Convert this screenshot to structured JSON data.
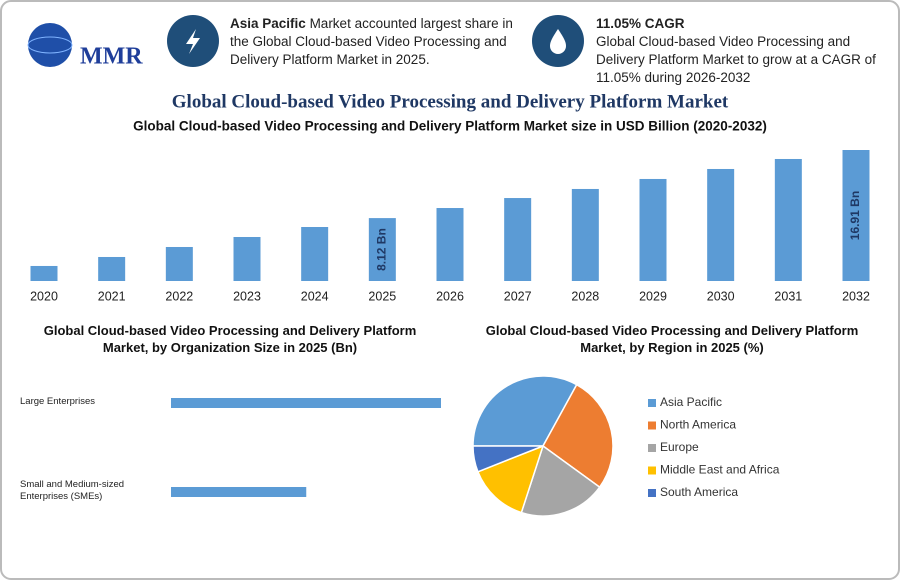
{
  "header": {
    "logo": "MMR",
    "note1": {
      "bold": "Asia Pacific",
      "text": "Market accounted largest share in the Global Cloud-based Video Processing and Delivery Platform Market in 2025."
    },
    "note2": {
      "bold": "11.05% CAGR",
      "text": "Global Cloud-based Video Processing and Delivery Platform Market to grow at a CAGR of 11.05% during 2026-2032"
    }
  },
  "title": "Global Cloud-based Video Processing and Delivery Platform Market",
  "chart_data": [
    {
      "type": "bar",
      "title": "Global Cloud-based Video Processing and Delivery Platform Market size in USD Billion (2020-2032)",
      "categories": [
        "2020",
        "2021",
        "2022",
        "2023",
        "2024",
        "2025",
        "2026",
        "2027",
        "2028",
        "2029",
        "2030",
        "2031",
        "2032"
      ],
      "values": [
        1.94,
        3.1,
        4.39,
        5.68,
        6.97,
        8.12,
        9.42,
        10.71,
        11.88,
        13.17,
        14.46,
        15.75,
        16.91
      ],
      "value_labels": [
        null,
        null,
        null,
        null,
        null,
        "8.12 Bn",
        null,
        null,
        null,
        null,
        null,
        null,
        "16.91 Bn"
      ],
      "color": "#5b9bd5"
    },
    {
      "type": "hbar",
      "title": "Global Cloud-based Video Processing and Delivery Platform Market, by Organization Size in 2025 (Bn)",
      "categories": [
        "Large Enterprises",
        "Small and Medium-sized Enterprises (SMEs)"
      ],
      "values": [
        5.41,
        2.71
      ],
      "color": "#5b9bd5"
    },
    {
      "type": "pie",
      "title": "Global Cloud-based Video Processing and Delivery Platform Market, by Region in 2025 (%)",
      "categories": [
        "Asia Pacific",
        "North America",
        "Europe",
        "Middle East and Africa",
        "South America"
      ],
      "values": [
        33,
        27,
        20,
        14,
        6
      ],
      "colors": [
        "#5b9bd5",
        "#ed7d31",
        "#a5a5a5",
        "#ffc000",
        "#4472c4"
      ]
    }
  ]
}
